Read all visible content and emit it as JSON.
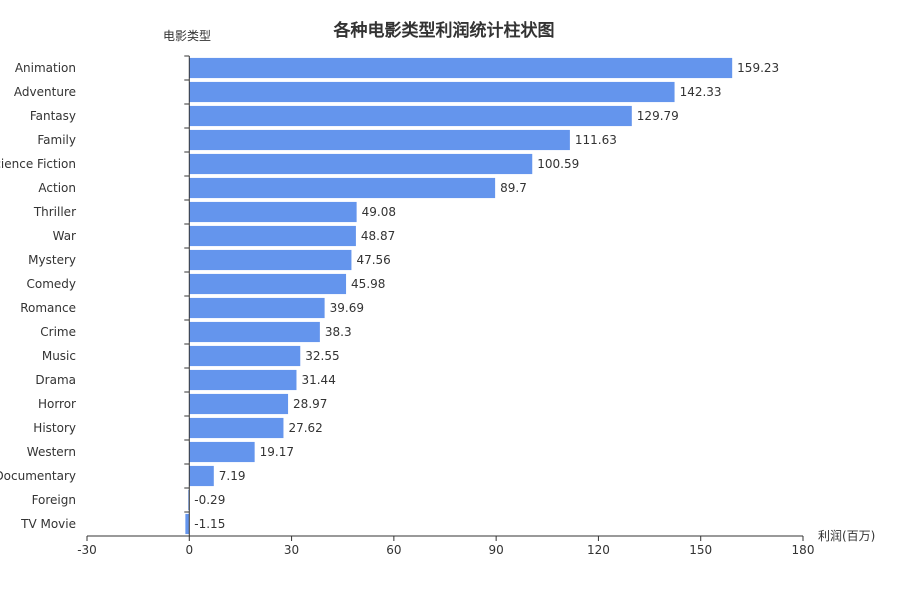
{
  "chart_data": {
    "type": "bar",
    "orientation": "horizontal",
    "title": "各种电影类型利润统计柱状图",
    "ylabel": "电影类型",
    "xlabel": "利润(百万)",
    "xlim": [
      -30,
      180
    ],
    "xticks": [
      -30,
      0,
      30,
      60,
      90,
      120,
      150,
      180
    ],
    "categories": [
      "Animation",
      "Adventure",
      "Fantasy",
      "Family",
      "Science Fiction",
      "Action",
      "Thriller",
      "War",
      "Mystery",
      "Comedy",
      "Romance",
      "Crime",
      "Music",
      "Drama",
      "Horror",
      "History",
      "Western",
      "Documentary",
      "Foreign",
      "TV Movie"
    ],
    "values": [
      159.23,
      142.33,
      129.79,
      111.63,
      100.59,
      89.7,
      49.08,
      48.87,
      47.56,
      45.98,
      39.69,
      38.3,
      32.55,
      31.44,
      28.97,
      27.62,
      19.17,
      7.19,
      -0.29,
      -1.15
    ],
    "bar_color": "#6495ed",
    "grid": false
  }
}
